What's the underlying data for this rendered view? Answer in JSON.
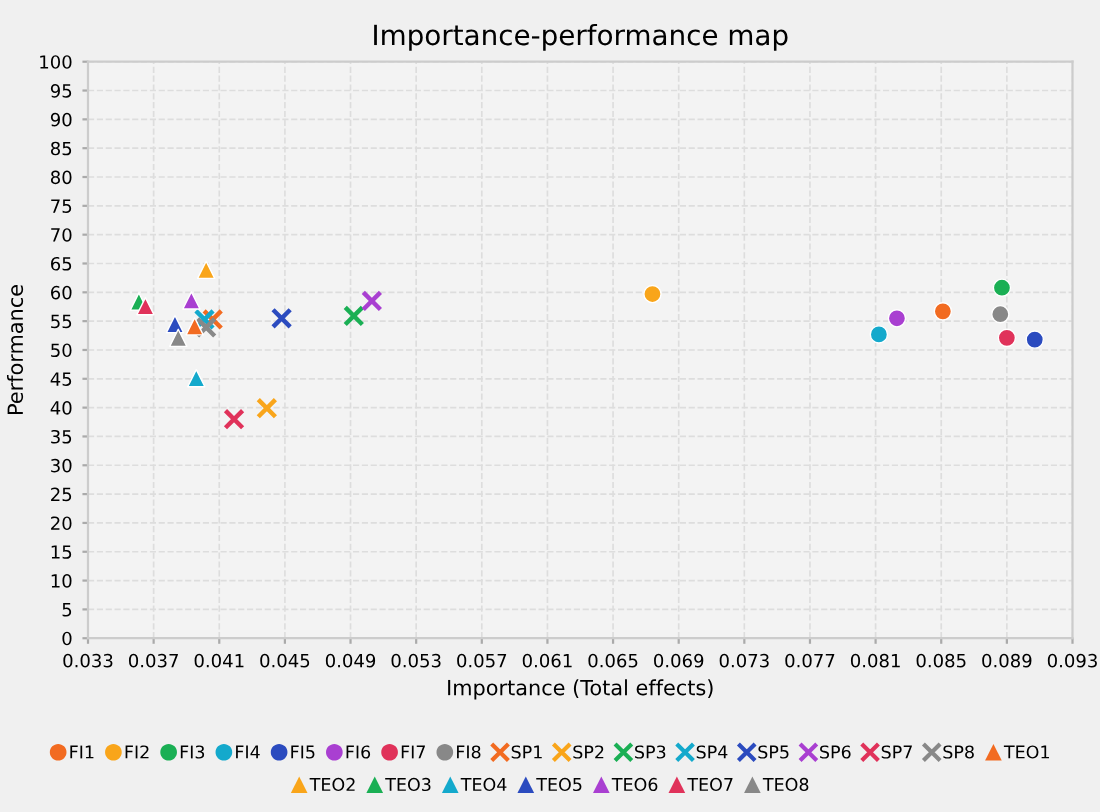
{
  "chart_data": {
    "type": "scatter",
    "title": "Importance-performance map",
    "xlabel": "Importance (Total effects)",
    "ylabel": "Performance",
    "xlim": [
      0.033,
      0.093
    ],
    "xticks": [
      0.033,
      0.037,
      0.041,
      0.045,
      0.049,
      0.053,
      0.057,
      0.061,
      0.065,
      0.069,
      0.073,
      0.077,
      0.081,
      0.085,
      0.089,
      0.093
    ],
    "ylim": [
      0,
      100
    ],
    "yticks": [
      0,
      5,
      10,
      15,
      20,
      25,
      30,
      35,
      40,
      45,
      50,
      55,
      60,
      65,
      70,
      75,
      80,
      85,
      90,
      95,
      100
    ],
    "grid": true,
    "legend": "bottom",
    "series": [
      {
        "name": "FI1",
        "color": "#f26b21",
        "marker": "circle",
        "x": [
          0.0851
        ],
        "values": [
          56.7
        ]
      },
      {
        "name": "FI2",
        "color": "#f9a51a",
        "marker": "circle",
        "x": [
          0.0674
        ],
        "values": [
          59.7
        ]
      },
      {
        "name": "FI3",
        "color": "#1aaf54",
        "marker": "circle",
        "x": [
          0.0887
        ],
        "values": [
          60.8
        ]
      },
      {
        "name": "FI4",
        "color": "#14a9cc",
        "marker": "circle",
        "x": [
          0.0812
        ],
        "values": [
          52.7
        ]
      },
      {
        "name": "FI5",
        "color": "#2b4bbf",
        "marker": "circle",
        "x": [
          0.0907
        ],
        "values": [
          51.8
        ]
      },
      {
        "name": "FI6",
        "color": "#a93fd1",
        "marker": "circle",
        "x": [
          0.0823
        ],
        "values": [
          55.5
        ]
      },
      {
        "name": "FI7",
        "color": "#e0325a",
        "marker": "circle",
        "x": [
          0.089
        ],
        "values": [
          52.1
        ]
      },
      {
        "name": "FI8",
        "color": "#888888",
        "marker": "circle",
        "x": [
          0.0886
        ],
        "values": [
          56.2
        ]
      },
      {
        "name": "SP1",
        "color": "#f26b21",
        "marker": "cross",
        "x": [
          0.0406
        ],
        "values": [
          55.3
        ]
      },
      {
        "name": "SP2",
        "color": "#f9a51a",
        "marker": "cross",
        "x": [
          0.0439
        ],
        "values": [
          39.9
        ]
      },
      {
        "name": "SP3",
        "color": "#1aaf54",
        "marker": "cross",
        "x": [
          0.0492
        ],
        "values": [
          55.9
        ]
      },
      {
        "name": "SP4",
        "color": "#14a9cc",
        "marker": "cross",
        "x": [
          0.0401
        ],
        "values": [
          55.3
        ]
      },
      {
        "name": "SP5",
        "color": "#2b4bbf",
        "marker": "cross",
        "x": [
          0.0448
        ],
        "values": [
          55.5
        ]
      },
      {
        "name": "SP6",
        "color": "#a93fd1",
        "marker": "cross",
        "x": [
          0.0503
        ],
        "values": [
          58.5
        ]
      },
      {
        "name": "SP7",
        "color": "#e0325a",
        "marker": "cross",
        "x": [
          0.0419
        ],
        "values": [
          38.0
        ]
      },
      {
        "name": "SP8",
        "color": "#888888",
        "marker": "cross",
        "x": [
          0.0402
        ],
        "values": [
          53.9
        ]
      },
      {
        "name": "TEO1",
        "color": "#f26b21",
        "marker": "triangle",
        "x": [
          0.0395
        ],
        "values": [
          54.1
        ]
      },
      {
        "name": "TEO2",
        "color": "#f9a51a",
        "marker": "triangle",
        "x": [
          0.0402
        ],
        "values": [
          63.9
        ]
      },
      {
        "name": "TEO3",
        "color": "#1aaf54",
        "marker": "triangle",
        "x": [
          0.0361
        ],
        "values": [
          58.4
        ]
      },
      {
        "name": "TEO4",
        "color": "#14a9cc",
        "marker": "triangle",
        "x": [
          0.0396
        ],
        "values": [
          45.1
        ]
      },
      {
        "name": "TEO5",
        "color": "#2b4bbf",
        "marker": "triangle",
        "x": [
          0.0383
        ],
        "values": [
          54.5
        ]
      },
      {
        "name": "TEO6",
        "color": "#a93fd1",
        "marker": "triangle",
        "x": [
          0.0393
        ],
        "values": [
          58.6
        ]
      },
      {
        "name": "TEO7",
        "color": "#e0325a",
        "marker": "triangle",
        "x": [
          0.0365
        ],
        "values": [
          57.6
        ]
      },
      {
        "name": "TEO8",
        "color": "#888888",
        "marker": "triangle",
        "x": [
          0.0385
        ],
        "values": [
          52.1
        ]
      }
    ]
  }
}
